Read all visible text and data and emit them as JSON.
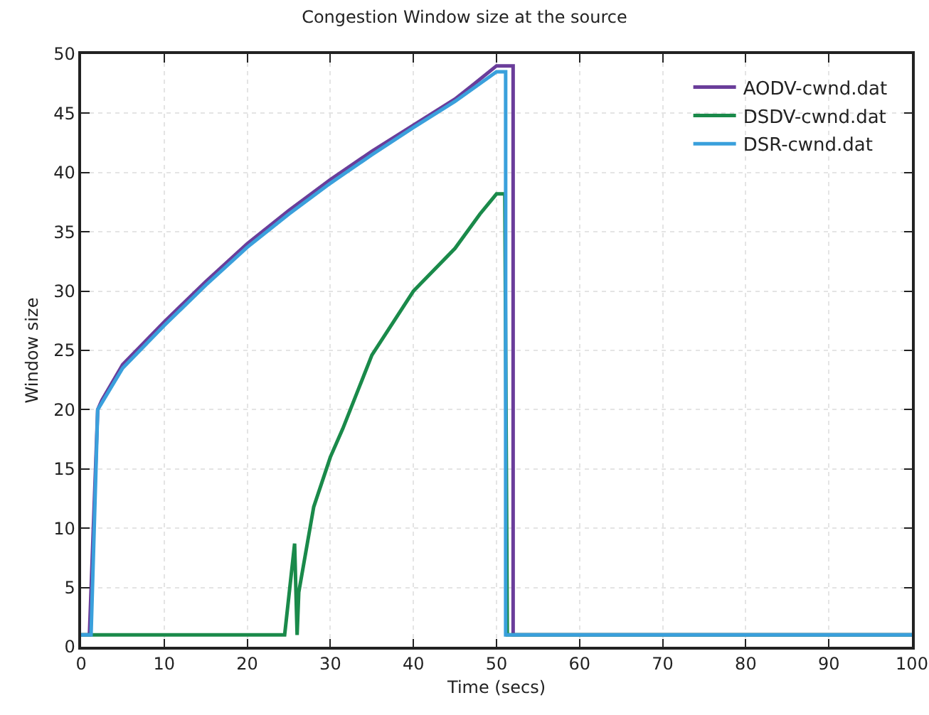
{
  "chart_data": {
    "type": "line",
    "title": "Congestion Window size at the source",
    "xlabel": "Time (secs)",
    "ylabel": "Window size",
    "xlim": [
      0,
      100
    ],
    "xticks": [
      0,
      10,
      20,
      30,
      40,
      50,
      60,
      70,
      80,
      90,
      100
    ],
    "ylim": [
      0,
      50
    ],
    "yticks": [
      0,
      5,
      10,
      15,
      20,
      25,
      30,
      35,
      40,
      45,
      50
    ],
    "grid": true,
    "legend": "top right",
    "marker": "none",
    "line_style": "solid",
    "series": [
      {
        "name": "AODV-cwnd.dat",
        "color": "#6a3d9a",
        "x": [
          0,
          1,
          2,
          2.5,
          5,
          10,
          15,
          20,
          25,
          30,
          35,
          40,
          45,
          47,
          50,
          52,
          52,
          100
        ],
        "values": [
          1,
          1,
          20,
          20.8,
          23.8,
          27.4,
          30.8,
          34,
          36.8,
          39.4,
          41.8,
          44,
          46.2,
          47.3,
          49,
          49,
          1,
          1
        ]
      },
      {
        "name": "DSDV-cwnd.dat",
        "color": "#1a8a4a",
        "x": [
          0,
          24.5,
          25.7,
          26,
          26.2,
          28,
          30,
          31.5,
          35,
          40,
          45,
          48,
          50,
          51,
          51.3,
          100
        ],
        "values": [
          1,
          1,
          8.7,
          1,
          4.6,
          11.8,
          16,
          18.4,
          24.6,
          30,
          33.6,
          36.5,
          38.2,
          38.2,
          1,
          1
        ]
      },
      {
        "name": "DSR-cwnd.dat",
        "color": "#3aa0dc",
        "x": [
          0,
          1.2,
          2,
          5,
          10,
          15,
          20,
          25,
          30,
          35,
          40,
          45,
          50,
          51.1,
          51.1,
          100
        ],
        "values": [
          1,
          1,
          20,
          23.5,
          27.1,
          30.5,
          33.7,
          36.5,
          39.1,
          41.5,
          43.8,
          46,
          48.5,
          48.5,
          1,
          1
        ]
      }
    ]
  }
}
